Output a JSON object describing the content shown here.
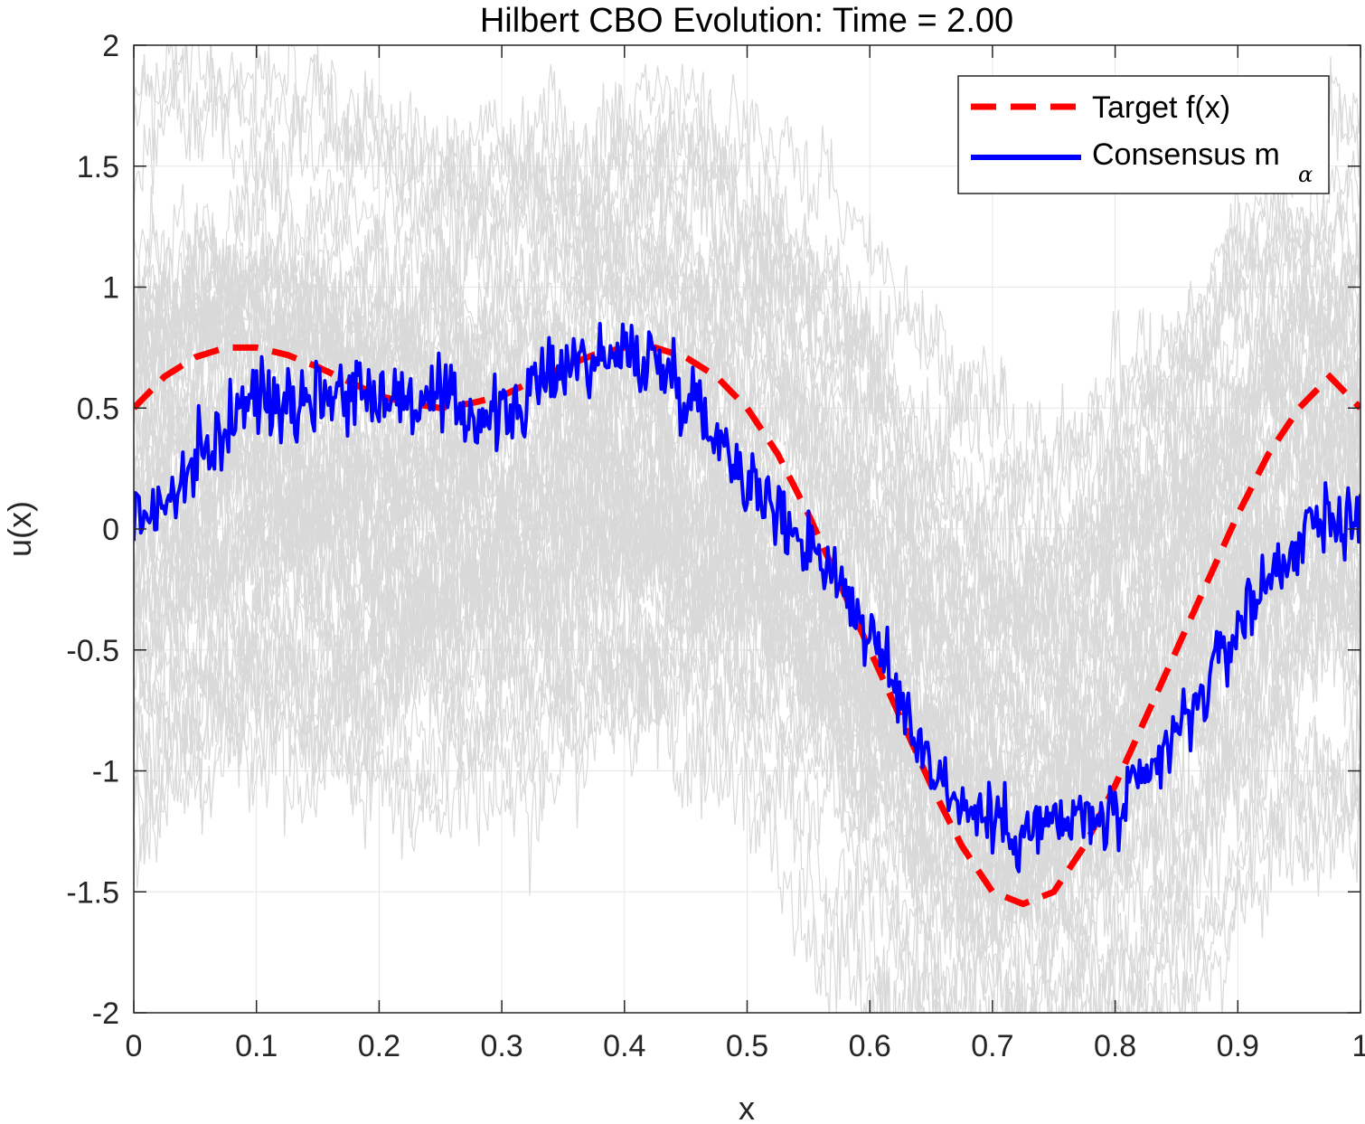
{
  "chart_data": {
    "type": "line",
    "title": "Hilbert CBO Evolution: Time = 2.00",
    "xlabel": "x",
    "ylabel": "u(x)",
    "xlim": [
      0,
      1
    ],
    "ylim": [
      -2,
      2
    ],
    "x_ticks": [
      0,
      0.1,
      0.2,
      0.3,
      0.4,
      0.5,
      0.6,
      0.7,
      0.8,
      0.9,
      1
    ],
    "x_tick_labels": [
      "0",
      "0.1",
      "0.2",
      "0.3",
      "0.4",
      "0.5",
      "0.6",
      "0.7",
      "0.8",
      "0.9",
      "1"
    ],
    "y_ticks": [
      2,
      1.5,
      1,
      0.5,
      0,
      -0.5,
      -1,
      -1.5,
      -2
    ],
    "y_tick_labels": [
      "2",
      "1.5",
      "1",
      "0.5",
      "0",
      "-0.5",
      "-1",
      "-1.5",
      "-2"
    ],
    "grid": true,
    "legend_position": "top-right",
    "legend": {
      "target_label": "Target f(x)",
      "consensus_label": "Consensus m",
      "consensus_subscript": "α"
    },
    "colors": {
      "target": "#ff0000",
      "consensus": "#0000ff",
      "particles": "#d9d9d9",
      "grid": "#e6e6e6",
      "axis": "#262626"
    },
    "series": [
      {
        "name": "Target f(x)",
        "style": "dashed",
        "x": [
          0,
          0.025,
          0.05,
          0.075,
          0.1,
          0.125,
          0.15,
          0.175,
          0.2,
          0.225,
          0.25,
          0.275,
          0.3,
          0.325,
          0.35,
          0.375,
          0.4,
          0.425,
          0.45,
          0.475,
          0.5,
          0.525,
          0.55,
          0.575,
          0.6,
          0.625,
          0.65,
          0.675,
          0.7,
          0.725,
          0.75,
          0.775,
          0.8,
          0.825,
          0.85,
          0.875,
          0.9,
          0.925,
          0.95,
          0.975,
          1
        ],
        "y": [
          0.5,
          0.63,
          0.71,
          0.75,
          0.75,
          0.72,
          0.67,
          0.61,
          0.55,
          0.52,
          0.5,
          0.52,
          0.55,
          0.61,
          0.67,
          0.72,
          0.75,
          0.75,
          0.71,
          0.63,
          0.5,
          0.31,
          0.06,
          -0.22,
          -0.5,
          -0.78,
          -1.06,
          -1.31,
          -1.5,
          -1.55,
          -1.5,
          -1.31,
          -1.06,
          -0.78,
          -0.5,
          -0.22,
          0.06,
          0.31,
          0.5,
          0.63,
          0.5
        ]
      },
      {
        "name": "Consensus mα",
        "style": "solid",
        "x": [
          0,
          0.025,
          0.05,
          0.075,
          0.1,
          0.125,
          0.15,
          0.175,
          0.2,
          0.225,
          0.25,
          0.275,
          0.3,
          0.325,
          0.35,
          0.375,
          0.4,
          0.425,
          0.45,
          0.475,
          0.5,
          0.525,
          0.55,
          0.575,
          0.6,
          0.625,
          0.65,
          0.675,
          0.7,
          0.725,
          0.75,
          0.775,
          0.8,
          0.825,
          0.85,
          0.875,
          0.9,
          0.925,
          0.95,
          0.975,
          1
        ],
        "y": [
          0.05,
          0.1,
          0.25,
          0.42,
          0.55,
          0.55,
          0.56,
          0.58,
          0.57,
          0.53,
          0.52,
          0.48,
          0.46,
          0.55,
          0.7,
          0.7,
          0.72,
          0.7,
          0.58,
          0.4,
          0.22,
          0.05,
          -0.05,
          -0.2,
          -0.45,
          -0.7,
          -0.97,
          -1.15,
          -1.2,
          -1.25,
          -1.22,
          -1.2,
          -1.2,
          -1.05,
          -0.85,
          -0.65,
          -0.4,
          -0.2,
          -0.05,
          0.05,
          0.05
        ]
      }
    ]
  }
}
